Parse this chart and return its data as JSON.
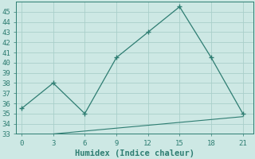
{
  "line1_x": [
    0,
    3,
    6,
    9,
    12,
    15,
    18,
    21
  ],
  "line1_y": [
    35.5,
    38.0,
    35.0,
    40.5,
    43.0,
    45.5,
    40.5,
    35.0
  ],
  "line2_x": [
    3,
    21
  ],
  "line2_y": [
    33.0,
    34.7
  ],
  "line_color": "#2e7d72",
  "background_color": "#cde8e4",
  "grid_color": "#aacfca",
  "xlabel": "Humidex (Indice chaleur)",
  "xlim": [
    -0.5,
    22
  ],
  "ylim": [
    33,
    46
  ],
  "xticks": [
    0,
    3,
    6,
    9,
    12,
    15,
    18,
    21
  ],
  "yticks": [
    33,
    34,
    35,
    36,
    37,
    38,
    39,
    40,
    41,
    42,
    43,
    44,
    45
  ],
  "xlabel_fontsize": 7.5,
  "tick_fontsize": 6.5
}
